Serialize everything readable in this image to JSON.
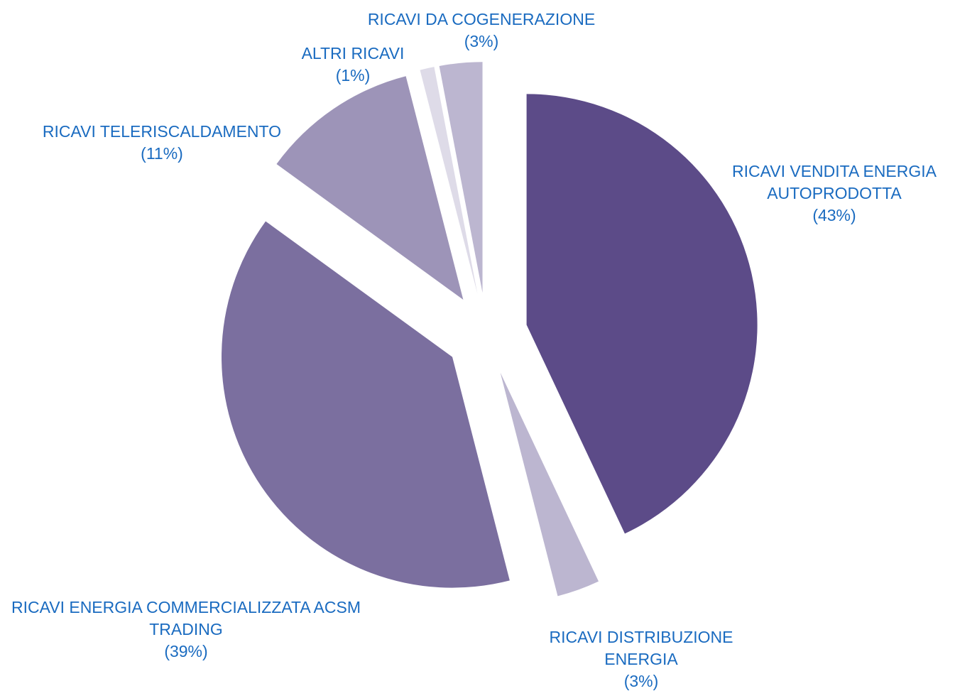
{
  "chart_data": {
    "type": "pie",
    "categories": [
      "RICAVI VENDITA ENERGIA AUTOPRODOTTA",
      "RICAVI DISTRIBUZIONE ENERGIA",
      "RICAVI ENERGIA COMMERCIALIZZATA ACSM TRADING",
      "RICAVI TELERISCALDAMENTO",
      "ALTRI RICAVI",
      "RICAVI DA COGENERAZIONE"
    ],
    "values": [
      43,
      3,
      39,
      11,
      1,
      3
    ],
    "value_labels": [
      "(43%)",
      "(3%)",
      "(39%)",
      "(11%)",
      "(1%)",
      "(3%)"
    ],
    "colors": [
      "#5c4b88",
      "#bcb6d0",
      "#7b6f9f",
      "#9d94b8",
      "#dedbe8",
      "#bcb6d0"
    ]
  }
}
